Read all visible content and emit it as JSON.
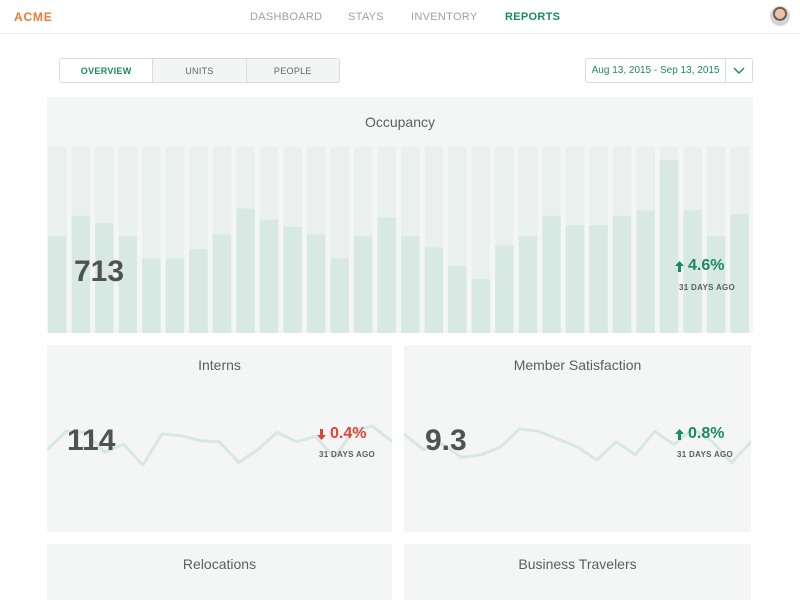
{
  "header": {
    "logo": "ACME",
    "nav": [
      "DASHBOARD",
      "STAYS",
      "INVENTORY",
      "REPORTS"
    ],
    "active_nav": "REPORTS"
  },
  "tabs": [
    {
      "label": "OVERVIEW",
      "active": true
    },
    {
      "label": "UNITS",
      "active": false
    },
    {
      "label": "PEOPLE",
      "active": false
    }
  ],
  "date_range": {
    "label": "Aug 13, 2015 - Sep 13, 2015"
  },
  "colors": {
    "accent": "#1a8a64",
    "brand": "#ef7a35",
    "negative": "#e0433a",
    "bar": "#d8e9e4",
    "bar_bg": "#eaf0ee",
    "line": "#d9e7e3"
  },
  "cards": {
    "occupancy": {
      "title": "Occupancy",
      "value": "713",
      "delta": "4.6%",
      "direction": "up",
      "period": "31 DAYS AGO"
    },
    "interns": {
      "title": "Interns",
      "value": "114",
      "delta": "0.4%",
      "direction": "down",
      "period": "31 DAYS AGO"
    },
    "satisfaction": {
      "title": "Member Satisfaction",
      "value": "9.3",
      "delta": "0.8%",
      "direction": "up",
      "period": "31 DAYS AGO"
    },
    "relocations": {
      "title": "Relocations"
    },
    "business": {
      "title": "Business Travelers"
    }
  },
  "chart_data": [
    {
      "type": "bar",
      "title": "Occupancy",
      "values": [
        0.52,
        0.63,
        0.59,
        0.52,
        0.4,
        0.4,
        0.45,
        0.53,
        0.67,
        0.61,
        0.57,
        0.53,
        0.4,
        0.52,
        0.62,
        0.52,
        0.46,
        0.36,
        0.29,
        0.47,
        0.52,
        0.63,
        0.58,
        0.58,
        0.63,
        0.66,
        0.93,
        0.66,
        0.52,
        0.64
      ],
      "ylim": [
        0,
        1
      ]
    },
    {
      "type": "line",
      "title": "Interns",
      "values": [
        0.45,
        0.8,
        0.78,
        0.4,
        0.55,
        0.15,
        0.75,
        0.72,
        0.62,
        0.6,
        0.2,
        0.45,
        0.78,
        0.6,
        0.7,
        0.3,
        0.82,
        0.9,
        0.6
      ],
      "ylim": [
        0,
        1
      ]
    },
    {
      "type": "line",
      "title": "Member Satisfaction",
      "values": [
        0.75,
        0.45,
        0.55,
        0.3,
        0.35,
        0.5,
        0.85,
        0.8,
        0.65,
        0.5,
        0.25,
        0.6,
        0.35,
        0.8,
        0.55,
        0.85,
        0.6,
        0.2,
        0.6
      ],
      "ylim": [
        0,
        1
      ]
    }
  ]
}
